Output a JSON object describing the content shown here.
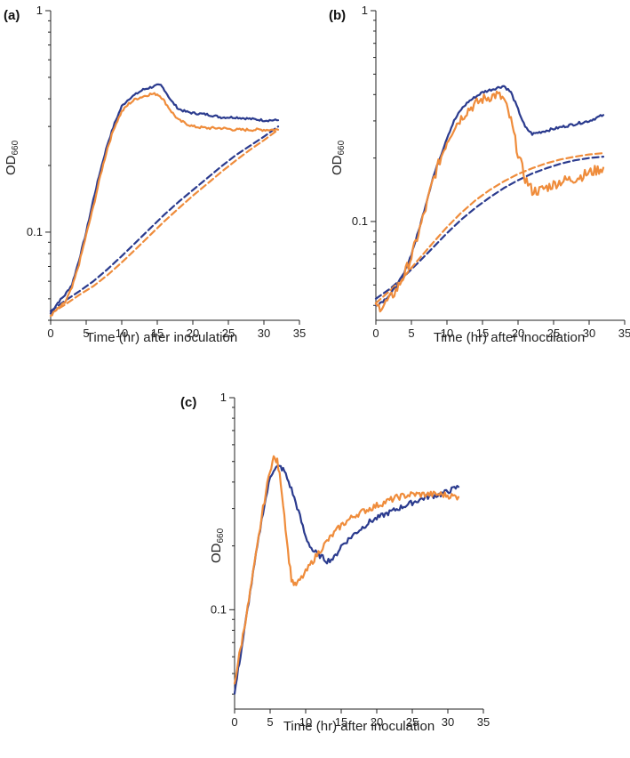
{
  "colors": {
    "blue": "#2b3b8e",
    "orange": "#ef8c3b",
    "axis": "#222222"
  },
  "chart_data": [
    {
      "panel": "(a)",
      "type": "line",
      "xlabel": "Time (hr) after inoculation",
      "ylabel": "OD",
      "ylabel_sub": "660",
      "xlim": [
        0,
        35
      ],
      "ylim": [
        0.04,
        1
      ],
      "yscale": "log",
      "xticks": [
        0,
        5,
        10,
        15,
        20,
        25,
        30,
        35
      ],
      "xtick_labels": [
        "0",
        "5",
        "10",
        "15",
        "20",
        "25",
        "30",
        "35"
      ],
      "yticks": [
        0.1,
        1
      ],
      "ytick_labels": [
        "0.1",
        "1"
      ],
      "series": [
        {
          "name": "blue solid",
          "color": "blue",
          "style": "solid",
          "x": [
            0,
            1,
            2,
            3,
            4,
            5,
            6,
            7,
            8,
            9,
            10,
            11,
            12,
            13,
            14,
            15,
            15.5,
            16,
            17,
            18,
            19,
            20,
            22,
            24,
            26,
            28,
            30,
            32
          ],
          "y": [
            0.043,
            0.048,
            0.052,
            0.058,
            0.075,
            0.1,
            0.14,
            0.19,
            0.25,
            0.31,
            0.37,
            0.4,
            0.42,
            0.44,
            0.45,
            0.46,
            0.46,
            0.44,
            0.39,
            0.36,
            0.35,
            0.345,
            0.34,
            0.33,
            0.33,
            0.325,
            0.32,
            0.32
          ],
          "noise": 0.01
        },
        {
          "name": "orange solid",
          "color": "orange",
          "style": "solid",
          "x": [
            0,
            1,
            2,
            3,
            4,
            5,
            6,
            7,
            8,
            9,
            10,
            11,
            12,
            13,
            14,
            15,
            15.5,
            16,
            17,
            18,
            19,
            20,
            22,
            24,
            26,
            28,
            30,
            32
          ],
          "y": [
            0.042,
            0.045,
            0.048,
            0.056,
            0.072,
            0.097,
            0.13,
            0.18,
            0.24,
            0.3,
            0.35,
            0.38,
            0.4,
            0.41,
            0.42,
            0.42,
            0.41,
            0.39,
            0.35,
            0.32,
            0.31,
            0.3,
            0.295,
            0.295,
            0.29,
            0.29,
            0.29,
            0.29
          ],
          "noise": 0.012
        },
        {
          "name": "blue dashed",
          "color": "blue",
          "style": "dashed",
          "x": [
            0,
            2,
            4,
            6,
            8,
            10,
            12,
            14,
            16,
            18,
            20,
            22,
            24,
            26,
            28,
            30,
            32
          ],
          "y": [
            0.044,
            0.049,
            0.054,
            0.06,
            0.068,
            0.078,
            0.09,
            0.104,
            0.12,
            0.137,
            0.155,
            0.175,
            0.198,
            0.222,
            0.245,
            0.27,
            0.3
          ],
          "noise": 0
        },
        {
          "name": "orange dashed",
          "color": "orange",
          "style": "dashed",
          "x": [
            0,
            2,
            4,
            6,
            8,
            10,
            12,
            14,
            16,
            18,
            20,
            22,
            24,
            26,
            28,
            30,
            32
          ],
          "y": [
            0.043,
            0.047,
            0.052,
            0.057,
            0.064,
            0.073,
            0.084,
            0.097,
            0.112,
            0.128,
            0.146,
            0.165,
            0.187,
            0.21,
            0.235,
            0.26,
            0.29
          ],
          "noise": 0
        }
      ]
    },
    {
      "panel": "(b)",
      "type": "line",
      "xlabel": "Time (hr) after inoculation",
      "ylabel": "OD",
      "ylabel_sub": "660",
      "xlim": [
        0,
        35
      ],
      "ylim": [
        0.034,
        1
      ],
      "yscale": "log",
      "xticks": [
        0,
        5,
        10,
        15,
        20,
        25,
        30,
        35
      ],
      "xtick_labels": [
        "0",
        "5",
        "10",
        "15",
        "20",
        "25",
        "30",
        "35"
      ],
      "yticks": [
        0.1,
        1
      ],
      "ytick_labels": [
        "0.1",
        "1"
      ],
      "series": [
        {
          "name": "blue solid",
          "color": "blue",
          "style": "solid",
          "x": [
            0,
            1,
            2,
            3,
            4,
            5,
            6,
            7,
            8,
            9,
            10,
            11,
            12,
            13,
            14,
            15,
            16,
            17,
            18,
            19,
            20,
            21,
            22,
            24,
            26,
            28,
            30,
            32
          ],
          "y": [
            0.04,
            0.042,
            0.045,
            0.05,
            0.057,
            0.07,
            0.09,
            0.12,
            0.16,
            0.2,
            0.25,
            0.3,
            0.34,
            0.37,
            0.39,
            0.41,
            0.42,
            0.43,
            0.44,
            0.41,
            0.34,
            0.28,
            0.26,
            0.27,
            0.28,
            0.29,
            0.3,
            0.32
          ],
          "noise": 0.012
        },
        {
          "name": "orange solid",
          "color": "orange",
          "style": "solid",
          "x": [
            0,
            1,
            2,
            3,
            4,
            5,
            6,
            7,
            8,
            9,
            10,
            11,
            12,
            13,
            14,
            15,
            16,
            17,
            18,
            19,
            20,
            21,
            22,
            23,
            24,
            25,
            26,
            28,
            30,
            32
          ],
          "y": [
            0.039,
            0.04,
            0.043,
            0.048,
            0.056,
            0.068,
            0.088,
            0.115,
            0.155,
            0.195,
            0.24,
            0.28,
            0.31,
            0.34,
            0.36,
            0.38,
            0.39,
            0.4,
            0.38,
            0.3,
            0.21,
            0.16,
            0.14,
            0.14,
            0.145,
            0.15,
            0.155,
            0.16,
            0.17,
            0.18
          ],
          "noise": 0.05
        },
        {
          "name": "blue dashed",
          "color": "blue",
          "style": "dashed",
          "x": [
            0,
            2,
            4,
            6,
            8,
            10,
            12,
            14,
            16,
            18,
            20,
            22,
            24,
            26,
            28,
            30,
            32
          ],
          "y": [
            0.043,
            0.048,
            0.055,
            0.064,
            0.075,
            0.088,
            0.102,
            0.116,
            0.13,
            0.144,
            0.157,
            0.169,
            0.179,
            0.188,
            0.195,
            0.2,
            0.203
          ],
          "noise": 0
        },
        {
          "name": "orange dashed",
          "color": "orange",
          "style": "dashed",
          "x": [
            0,
            2,
            4,
            6,
            8,
            10,
            12,
            14,
            16,
            18,
            20,
            22,
            24,
            26,
            28,
            30,
            32
          ],
          "y": [
            0.041,
            0.047,
            0.055,
            0.066,
            0.079,
            0.094,
            0.11,
            0.126,
            0.141,
            0.155,
            0.168,
            0.179,
            0.189,
            0.197,
            0.203,
            0.208,
            0.211
          ],
          "noise": 0
        }
      ]
    },
    {
      "panel": "(c)",
      "type": "line",
      "xlabel": "Time (hr) after inoculation",
      "ylabel": "OD",
      "ylabel_sub": "660",
      "xlim": [
        0,
        35
      ],
      "ylim": [
        0.034,
        1
      ],
      "yscale": "log",
      "xticks": [
        0,
        5,
        10,
        15,
        20,
        25,
        30,
        35
      ],
      "xtick_labels": [
        "0",
        "5",
        "10",
        "15",
        "20",
        "25",
        "30",
        "35"
      ],
      "yticks": [
        0.1,
        1
      ],
      "ytick_labels": [
        "0.1",
        "1"
      ],
      "series": [
        {
          "name": "blue solid",
          "color": "blue",
          "style": "solid",
          "x": [
            0,
            0.5,
            1,
            1.5,
            2,
            3,
            4,
            5,
            5.5,
            6,
            6.5,
            7,
            8,
            9,
            10,
            11,
            12,
            13,
            14,
            15,
            17,
            19,
            21,
            23,
            25,
            27,
            29,
            31.5
          ],
          "y": [
            0.04,
            0.052,
            0.066,
            0.085,
            0.11,
            0.18,
            0.29,
            0.42,
            0.46,
            0.47,
            0.47,
            0.45,
            0.37,
            0.29,
            0.22,
            0.19,
            0.18,
            0.17,
            0.175,
            0.2,
            0.23,
            0.26,
            0.28,
            0.3,
            0.32,
            0.34,
            0.35,
            0.38
          ],
          "noise": 0.025
        },
        {
          "name": "orange solid",
          "color": "orange",
          "style": "solid",
          "x": [
            0,
            0.5,
            1,
            1.5,
            2,
            3,
            4,
            5,
            5.5,
            6,
            6.5,
            7,
            7.5,
            8,
            8.5,
            9,
            10,
            11,
            12,
            13,
            15,
            17,
            19,
            21,
            23,
            25,
            27,
            29,
            31.5
          ],
          "y": [
            0.045,
            0.057,
            0.07,
            0.088,
            0.11,
            0.18,
            0.3,
            0.46,
            0.52,
            0.5,
            0.4,
            0.28,
            0.19,
            0.14,
            0.13,
            0.135,
            0.15,
            0.17,
            0.19,
            0.21,
            0.25,
            0.28,
            0.3,
            0.32,
            0.34,
            0.35,
            0.35,
            0.35,
            0.34
          ],
          "noise": 0.03
        }
      ]
    }
  ]
}
